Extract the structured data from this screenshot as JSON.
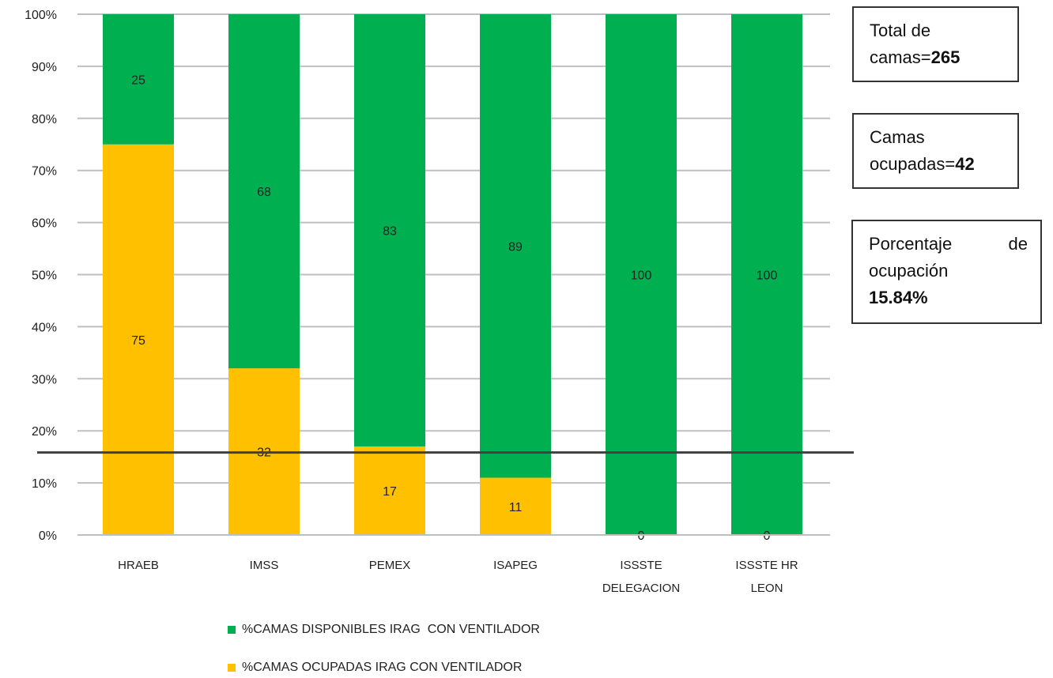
{
  "chart_data": {
    "type": "bar",
    "stacked": true,
    "percent_stacked": true,
    "categories": [
      "HRAEB",
      "IMSS",
      "PEMEX",
      "ISAPEG",
      "ISSSTE DELEGACION",
      "ISSSTE HR LEON"
    ],
    "category_lines": [
      [
        "HRAEB"
      ],
      [
        "IMSS"
      ],
      [
        "PEMEX"
      ],
      [
        "ISAPEG"
      ],
      [
        "ISSSTE",
        "DELEGACION"
      ],
      [
        "ISSSTE HR",
        "LEON"
      ]
    ],
    "series": [
      {
        "name": "%CAMAS OCUPADAS IRAG CON VENTILADOR",
        "values": [
          75,
          32,
          17,
          11,
          0,
          0
        ],
        "color": "#FFC000"
      },
      {
        "name": "%CAMAS DISPONIBLES IRAG  CON VENTILADOR",
        "values": [
          25,
          68,
          83,
          89,
          100,
          100
        ],
        "color": "#00B050"
      }
    ],
    "y_ticks": [
      "0%",
      "10%",
      "20%",
      "30%",
      "40%",
      "50%",
      "60%",
      "70%",
      "80%",
      "90%",
      "100%"
    ],
    "ylim": [
      0,
      100
    ],
    "reference_line": 15.84,
    "grid": true,
    "legend_position": "bottom"
  },
  "info_boxes": {
    "total": {
      "label": "Total de",
      "label2": "camas=",
      "value": "265"
    },
    "ocupadas": {
      "label": "Camas",
      "label2": "ocupadas=",
      "value": "42"
    },
    "porcentaje": {
      "label_a": "Porcentaje",
      "label_b": "de",
      "label2": "ocupación",
      "value": "15.84%"
    }
  },
  "legend": {
    "disponibles": "%CAMAS DISPONIBLES IRAG  CON VENTILADOR",
    "ocupadas": "%CAMAS OCUPADAS IRAG CON VENTILADOR"
  },
  "colors": {
    "disponibles": "#00B050",
    "ocupadas": "#FFC000",
    "grid": "#BFBFBF",
    "reference_line": "#404040"
  }
}
